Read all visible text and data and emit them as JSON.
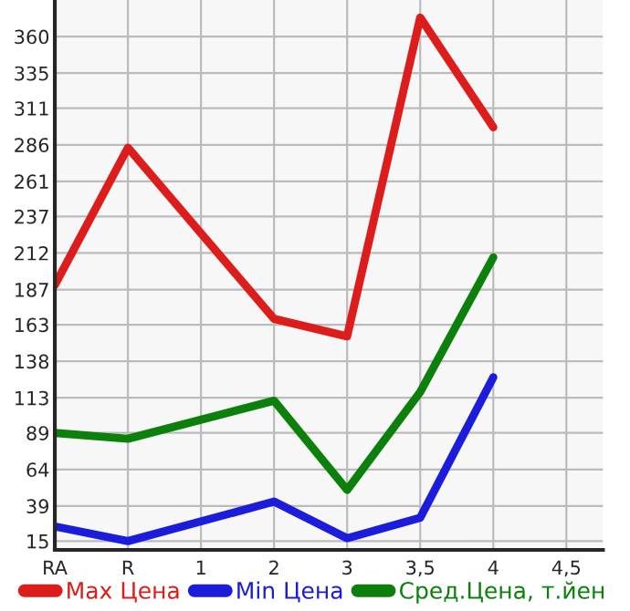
{
  "chart_data": {
    "type": "line",
    "categories": [
      "RA",
      "R",
      "1",
      "2",
      "3",
      "3,5",
      "4",
      "4,5"
    ],
    "series": [
      {
        "name": "Max Цена",
        "color": "#dd1c1c",
        "values": [
          190,
          284,
          null,
          167,
          155,
          373,
          298,
          null
        ]
      },
      {
        "name": "Min Цена",
        "color": "#1c1cdd",
        "values": [
          25,
          15,
          null,
          42,
          17,
          31,
          127,
          null
        ]
      },
      {
        "name": "Сред.Цена, т.йен",
        "color": "#0b800b",
        "values": [
          89,
          85,
          null,
          111,
          50,
          117,
          209,
          null
        ]
      }
    ],
    "ylim": [
      9,
      385
    ],
    "yticks": [
      15,
      39,
      64,
      89,
      113,
      138,
      163,
      187,
      212,
      237,
      261,
      286,
      311,
      335,
      360
    ],
    "grid": true,
    "legend": "bottom",
    "marker": "none",
    "line_style": "solid"
  }
}
